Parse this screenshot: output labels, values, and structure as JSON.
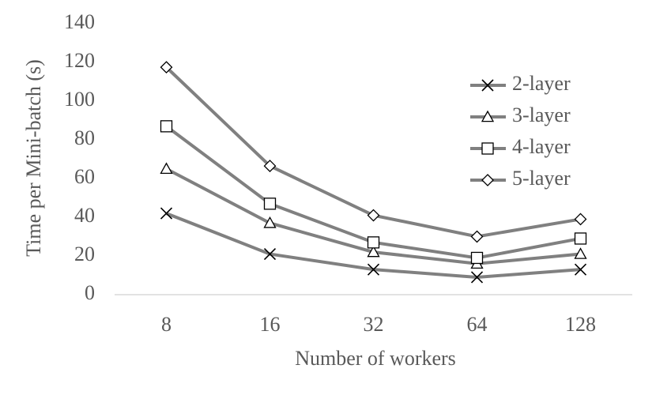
{
  "chart_data": {
    "type": "line",
    "x_label": "Number of workers",
    "y_label": "Time per Mini-batch (s)",
    "categories": [
      "8",
      "16",
      "32",
      "64",
      "128"
    ],
    "series": [
      {
        "name": "2-layer",
        "color": "#808080",
        "marker": "x",
        "values": [
          42,
          21,
          13,
          9,
          13
        ]
      },
      {
        "name": "3-layer",
        "color": "#808080",
        "marker": "triangle",
        "values": [
          65,
          37,
          22,
          16,
          21
        ]
      },
      {
        "name": "4-layer",
        "color": "#808080",
        "marker": "square",
        "values": [
          87,
          47,
          27,
          19,
          29
        ]
      },
      {
        "name": "5-layer",
        "color": "#808080",
        "marker": "diamond",
        "values": [
          117.5,
          66.5,
          41,
          30,
          39
        ]
      }
    ],
    "ylim": [
      0,
      140
    ],
    "yticks": [
      0,
      20,
      40,
      60,
      80,
      100,
      120,
      140
    ],
    "grid": false,
    "legend": "upper right"
  }
}
